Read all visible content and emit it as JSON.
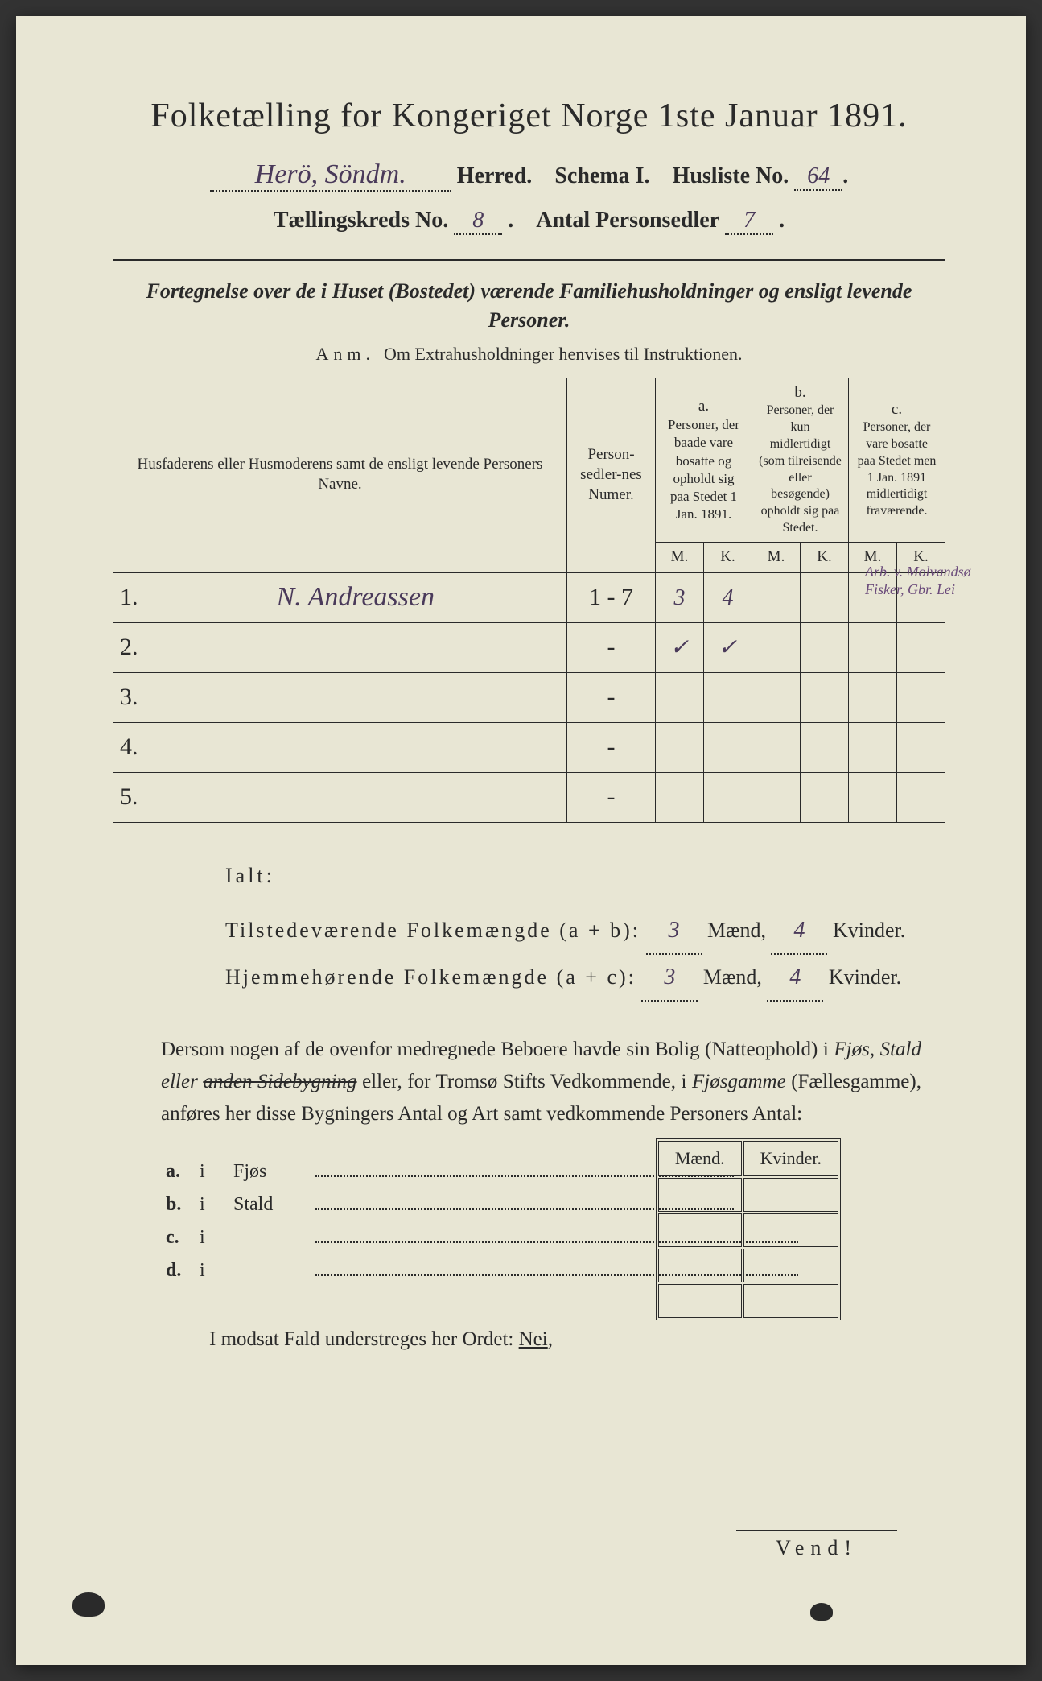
{
  "title": "Folketælling for Kongeriget Norge 1ste Januar 1891.",
  "header": {
    "herred_hand": "Herö, Söndm.",
    "herred_label": "Herred.",
    "schema_label": "Schema I.",
    "husliste_label": "Husliste No.",
    "husliste_no": "64",
    "kreds_label": "Tællingskreds No.",
    "kreds_no": "8",
    "sedler_label": "Antal Personsedler",
    "sedler_no": "7"
  },
  "subtitle": "Fortegnelse over de i Huset (Bostedet) værende Familiehusholdninger og ensligt levende Personer.",
  "anm_lead": "Anm.",
  "anm_text": "Om Extrahusholdninger henvises til Instruktionen.",
  "cols": {
    "name": "Husfaderens eller Husmoderens samt de ensligt levende Personers Navne.",
    "sedler": "Person-sedler-nes Numer.",
    "a_label": "a.",
    "a_text": "Personer, der baade vare bosatte og opholdt sig paa Stedet 1 Jan. 1891.",
    "b_label": "b.",
    "b_text": "Personer, der kun midlertidigt (som tilreisende eller besøgende) opholdt sig paa Stedet.",
    "c_label": "c.",
    "c_text": "Personer, der vare bosatte paa Stedet men 1 Jan. 1891 midlertidigt fraværende.",
    "M": "M.",
    "K": "K."
  },
  "rows": [
    {
      "n": "1.",
      "name_hand": "N. Andreassen",
      "sedler": "1 - 7",
      "aM": "3",
      "aK": "4",
      "bM": "",
      "bK": "",
      "cM": "",
      "cK": ""
    },
    {
      "n": "2.",
      "name_hand": "",
      "sedler": "-",
      "aM": "✓",
      "aK": "✓",
      "bM": "",
      "bK": "",
      "cM": "",
      "cK": ""
    },
    {
      "n": "3.",
      "name_hand": "",
      "sedler": "-",
      "aM": "",
      "aK": "",
      "bM": "",
      "bK": "",
      "cM": "",
      "cK": ""
    },
    {
      "n": "4.",
      "name_hand": "",
      "sedler": "-",
      "aM": "",
      "aK": "",
      "bM": "",
      "bK": "",
      "cM": "",
      "cK": ""
    },
    {
      "n": "5.",
      "name_hand": "",
      "sedler": "-",
      "aM": "",
      "aK": "",
      "bM": "",
      "bK": "",
      "cM": "",
      "cK": ""
    }
  ],
  "margin_note": "Arb. v. Molvandsø Fisker, Gbr. Lei",
  "ialt": {
    "label": "Ialt:",
    "line1_a": "Tilstedeværende Folkemængde (a + b):",
    "line2_a": "Hjemmehørende Folkemængde (a + c):",
    "maend": "Mænd,",
    "kvinder": "Kvinder.",
    "v1m": "3",
    "v1k": "4",
    "v2m": "3",
    "v2k": "4"
  },
  "para": {
    "text1": "Dersom nogen af de ovenfor medregnede Beboere havde sin Bolig (Natteophold) i ",
    "fjos1": "Fjøs, Stald eller ",
    "struck": "anden Sidebygning",
    "text2": " eller, for Tromsø Stifts Vedkommende, i ",
    "fjosgamme": "Fjøsgamme",
    "text3": " (Fællesgamme), anføres her disse Bygningers Antal og Art samt vedkommende Personers Antal:"
  },
  "mk_header": {
    "m": "Mænd.",
    "k": "Kvinder."
  },
  "bldg": [
    {
      "l": "a.",
      "i": "i",
      "t": "Fjøs"
    },
    {
      "l": "b.",
      "i": "i",
      "t": "Stald"
    },
    {
      "l": "c.",
      "i": "i",
      "t": ""
    },
    {
      "l": "d.",
      "i": "i",
      "t": ""
    }
  ],
  "nei_line_a": "I modsat Fald understreges her Ordet: ",
  "nei": "Nei",
  "vend": "Vend!"
}
